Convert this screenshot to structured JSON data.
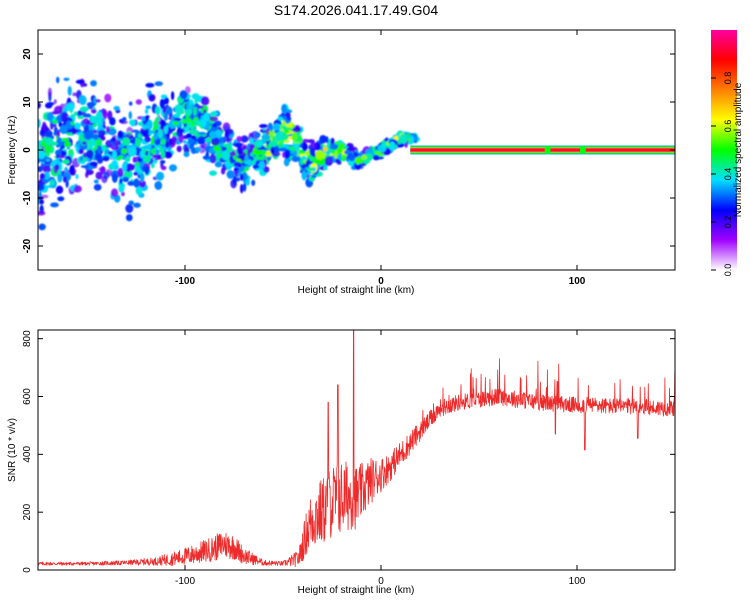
{
  "page_title": "S174.2026.041.17.49.G04",
  "colors": {
    "snr_line": "#ee2a2a",
    "frame": "#000000",
    "colorbar_stops": [
      "#ffffff",
      "#a000ff",
      "#0000ff",
      "#00e0ff",
      "#00ff00",
      "#ffff00",
      "#ff8000",
      "#ff0000",
      "#ff00a0"
    ]
  },
  "chart_data": [
    {
      "type": "heatmap",
      "title": "S174.2026.041.17.49.G04",
      "xlabel": "Height of straight line (km)",
      "ylabel": "Frequency (Hz)",
      "xlim": [
        -175,
        150
      ],
      "ylim": [
        -25,
        25
      ],
      "x_ticks": [
        {
          "value": -100,
          "label": "-100"
        },
        {
          "value": 0,
          "label": "0"
        },
        {
          "value": 100,
          "label": "100"
        }
      ],
      "y_ticks": [
        {
          "value": -20,
          "label": "-20"
        },
        {
          "value": -10,
          "label": "-10"
        },
        {
          "value": 0,
          "label": "0"
        },
        {
          "value": 10,
          "label": "10"
        },
        {
          "value": 20,
          "label": "20"
        }
      ],
      "colorbar": {
        "label": "Normalized spectral amplitude",
        "range": [
          0,
          1
        ],
        "ticks": [
          {
            "value": 0.0,
            "label": "0.0"
          },
          {
            "value": 0.2,
            "label": "0.2"
          },
          {
            "value": 0.4,
            "label": "0.4"
          },
          {
            "value": 0.6,
            "label": "0.6"
          },
          {
            "value": 0.8,
            "label": "0.8"
          }
        ]
      },
      "ridge": {
        "description": "dominant frequency ridge (Hz) vs height",
        "x": [
          -175,
          -150,
          -125,
          -100,
          -90,
          -80,
          -70,
          -60,
          -50,
          -45,
          -40,
          -35,
          -30,
          -25,
          -20,
          -15,
          -10,
          -5,
          0,
          5,
          10,
          15,
          20,
          150
        ],
        "y": [
          0,
          1,
          2,
          4,
          3,
          1,
          0,
          1,
          2,
          0,
          -3,
          -5,
          -1,
          1,
          2,
          1,
          0,
          1,
          0,
          0,
          0,
          0,
          0,
          0
        ],
        "spread_hz": [
          14,
          13,
          12,
          8,
          7,
          6,
          5,
          5,
          6,
          6,
          5,
          5,
          4,
          3,
          3,
          2,
          1.5,
          1.5,
          1.2,
          1.2,
          1,
          0.8,
          0.8,
          0.8
        ]
      },
      "steady_band": {
        "x_start": 15,
        "x_end": 150,
        "frequency": 0,
        "amplitude": 1.0
      }
    },
    {
      "type": "line",
      "title": "",
      "xlabel": "Height of straight line (km)",
      "ylabel": "SNR (10 * v/v)",
      "xlim": [
        -175,
        150
      ],
      "ylim": [
        0,
        830
      ],
      "x_ticks": [
        {
          "value": -100,
          "label": "-100"
        },
        {
          "value": 0,
          "label": "0"
        },
        {
          "value": 100,
          "label": "100"
        }
      ],
      "y_ticks": [
        {
          "value": 0,
          "label": "0"
        },
        {
          "value": 200,
          "label": "200"
        },
        {
          "value": 400,
          "label": "400"
        },
        {
          "value": 600,
          "label": "600"
        },
        {
          "value": 800,
          "label": "800"
        }
      ],
      "series": [
        {
          "name": "SNR",
          "x": [
            -175,
            -150,
            -130,
            -115,
            -105,
            -95,
            -85,
            -80,
            -75,
            -70,
            -60,
            -50,
            -42,
            -38,
            -35,
            -30,
            -25,
            -20,
            -15,
            -12,
            -10,
            -5,
            0,
            5,
            10,
            15,
            20,
            25,
            30,
            40,
            50,
            60,
            70,
            80,
            90,
            100,
            110,
            120,
            130,
            140,
            150
          ],
          "y": [
            22,
            22,
            25,
            30,
            40,
            55,
            75,
            90,
            80,
            50,
            25,
            22,
            40,
            130,
            180,
            200,
            240,
            250,
            260,
            250,
            270,
            310,
            330,
            360,
            400,
            440,
            480,
            520,
            560,
            580,
            590,
            600,
            590,
            580,
            575,
            570,
            570,
            565,
            565,
            560,
            560
          ],
          "noise": [
            6,
            6,
            8,
            14,
            25,
            35,
            45,
            50,
            45,
            30,
            10,
            8,
            30,
            80,
            110,
            120,
            130,
            130,
            120,
            110,
            100,
            80,
            60,
            50,
            45,
            40,
            35,
            30,
            30,
            28,
            28,
            30,
            30,
            28,
            28,
            28,
            28,
            28,
            28,
            28,
            28
          ]
        }
      ],
      "notable_peaks": [
        {
          "x": -14,
          "y": 830
        },
        {
          "x": -22,
          "y": 640
        },
        {
          "x": -27,
          "y": 580
        }
      ],
      "notable_dips": [
        {
          "x": 89,
          "y": 470
        },
        {
          "x": 104,
          "y": 415
        },
        {
          "x": 131,
          "y": 455
        }
      ]
    }
  ]
}
